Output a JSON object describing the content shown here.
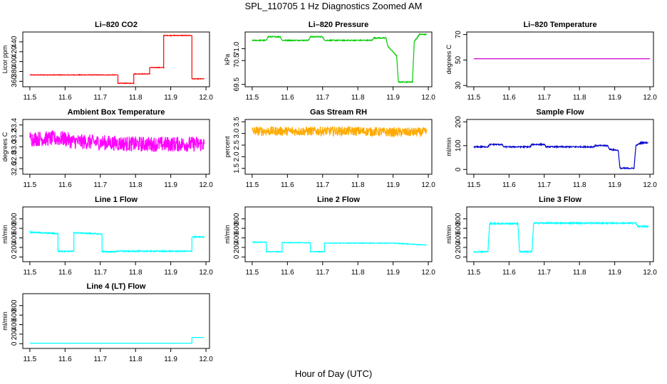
{
  "figure": {
    "title": "SPL_110705  1 Hz Diagnostics Zoomed AM",
    "xlabel": "Hour of Day (UTC)"
  },
  "chart_data": [
    {
      "type": "line",
      "title": "Li–820 CO2",
      "ylabel": "Licor ppm",
      "color": "#ff0000",
      "xlim": [
        11.48,
        12.01
      ],
      "xticks": [
        11.5,
        11.6,
        11.7,
        11.8,
        11.9,
        12.0
      ],
      "xtick_labels": [
        "11.5",
        "11.6",
        "11.7",
        "11.8",
        "11.9",
        "12.0"
      ],
      "ylim": [
        349,
        460
      ],
      "yticks": [
        360,
        380,
        400,
        420,
        440
      ],
      "ytick_labels": [
        "360",
        "380",
        "400",
        "420",
        "440"
      ],
      "noise": 0.6,
      "x": [
        11.5,
        11.75,
        11.75,
        11.795,
        11.795,
        11.84,
        11.84,
        11.88,
        11.88,
        11.96,
        11.96,
        11.995
      ],
      "y": [
        373,
        373,
        356,
        356,
        375,
        375,
        388,
        388,
        453,
        453,
        365,
        365
      ]
    },
    {
      "type": "line",
      "title": "Li–820 Pressure",
      "ylabel": "kPa",
      "color": "#00cc00",
      "xlim": [
        11.48,
        12.01
      ],
      "xticks": [
        11.5,
        11.6,
        11.7,
        11.8,
        11.9,
        12.0
      ],
      "xtick_labels": [
        "11.5",
        "11.6",
        "11.7",
        "11.8",
        "11.9",
        "12.0"
      ],
      "ylim": [
        69.4,
        71.7
      ],
      "yticks": [
        69.5,
        70.5,
        71.0
      ],
      "ytick_labels": [
        "69.5",
        "70.5",
        "71.0"
      ],
      "noise": 0.02,
      "x": [
        11.5,
        11.54,
        11.545,
        11.58,
        11.585,
        11.66,
        11.665,
        11.7,
        11.705,
        11.84,
        11.845,
        11.88,
        11.885,
        11.91,
        11.915,
        11.955,
        11.96,
        11.975,
        11.995
      ],
      "y": [
        71.35,
        71.35,
        71.5,
        71.5,
        71.35,
        71.35,
        71.5,
        71.5,
        71.35,
        71.35,
        71.45,
        71.45,
        71.1,
        70.7,
        69.6,
        69.6,
        71.3,
        71.6,
        71.6
      ]
    },
    {
      "type": "line",
      "title": "Li–820 Temperature",
      "ylabel": "degrees C",
      "color": "#cc00cc",
      "xlim": [
        11.48,
        12.01
      ],
      "xticks": [
        11.5,
        11.6,
        11.7,
        11.8,
        11.9,
        12.0
      ],
      "xtick_labels": [
        "11.5",
        "11.6",
        "11.7",
        "11.8",
        "11.9",
        "12.0"
      ],
      "ylim": [
        29,
        72
      ],
      "yticks": [
        30,
        50,
        70
      ],
      "ytick_labels": [
        "30",
        "50",
        "70"
      ],
      "noise": 0,
      "x": [
        11.5,
        12.0
      ],
      "y": [
        51,
        51
      ]
    },
    {
      "type": "line",
      "title": "Ambient Box Temperature",
      "ylabel": "degrees C",
      "color": "#ff00ff",
      "xlim": [
        11.48,
        12.01
      ],
      "xticks": [
        11.5,
        11.6,
        11.7,
        11.8,
        11.9,
        12.0
      ],
      "xtick_labels": [
        "11.5",
        "11.6",
        "11.7",
        "11.8",
        "11.9",
        "12.0"
      ],
      "ylim": [
        32.5,
        33.5
      ],
      "yticks": [
        32.6,
        32.8,
        33.0,
        33.2,
        33.4
      ],
      "ytick_labels": [
        "32.6",
        "32.8",
        "33.0",
        "33.2",
        "33.4"
      ],
      "noise": 0.14,
      "x": [
        11.5,
        11.6,
        11.62,
        11.7,
        11.8,
        11.9,
        11.995
      ],
      "y": [
        33.15,
        33.15,
        33.1,
        33.08,
        33.05,
        33.05,
        33.05
      ]
    },
    {
      "type": "line",
      "title": "Gas Stream RH",
      "ylabel": "percent",
      "color": "#ffaa00",
      "xlim": [
        11.48,
        12.01
      ],
      "xticks": [
        11.5,
        11.6,
        11.7,
        11.8,
        11.9,
        12.0
      ],
      "xtick_labels": [
        "11.5",
        "11.6",
        "11.7",
        "11.8",
        "11.9",
        "12.0"
      ],
      "ylim": [
        1.25,
        3.6
      ],
      "yticks": [
        1.5,
        2.0,
        2.5,
        3.0,
        3.5
      ],
      "ytick_labels": [
        "1.5",
        "2.0",
        "2.5",
        "3.0",
        "3.5"
      ],
      "noise": 0.2,
      "x": [
        11.5,
        11.7,
        11.8,
        11.9,
        11.995
      ],
      "y": [
        3.1,
        3.1,
        3.1,
        3.05,
        3.05
      ]
    },
    {
      "type": "line",
      "title": "Sample Flow",
      "ylabel": "ml/min",
      "color": "#0000cc",
      "xlim": [
        11.48,
        12.01
      ],
      "xticks": [
        11.5,
        11.6,
        11.7,
        11.8,
        11.9,
        12.0
      ],
      "xtick_labels": [
        "11.5",
        "11.6",
        "11.7",
        "11.8",
        "11.9",
        "12.0"
      ],
      "ylim": [
        -20,
        210
      ],
      "yticks": [
        0,
        100,
        200
      ],
      "ytick_labels": [
        "0",
        "100",
        "200"
      ],
      "noise": 2.5,
      "x": [
        11.5,
        11.54,
        11.545,
        11.58,
        11.585,
        11.66,
        11.665,
        11.7,
        11.705,
        11.84,
        11.845,
        11.88,
        11.885,
        11.91,
        11.915,
        11.955,
        11.96,
        11.975,
        11.995
      ],
      "y": [
        95,
        95,
        105,
        105,
        95,
        95,
        105,
        105,
        95,
        95,
        100,
        100,
        85,
        80,
        5,
        5,
        100,
        112,
        112
      ]
    },
    {
      "type": "line",
      "title": "Line 1 Flow",
      "ylabel": "ml/min",
      "color": "#00ffff",
      "xlim": [
        11.48,
        12.01
      ],
      "xticks": [
        11.5,
        11.6,
        11.7,
        11.8,
        11.9,
        12.0
      ],
      "xtick_labels": [
        "11.5",
        "11.6",
        "11.7",
        "11.8",
        "11.9",
        "12.0"
      ],
      "ylim": [
        -100,
        1050
      ],
      "yticks": [
        0,
        200,
        400,
        600,
        800
      ],
      "ytick_labels": [
        "0",
        "200",
        "400",
        "600",
        "800"
      ],
      "noise": 12,
      "x": [
        11.5,
        11.58,
        11.58,
        11.625,
        11.625,
        11.705,
        11.705,
        11.745,
        11.745,
        11.96,
        11.96,
        11.995
      ],
      "y": [
        520,
        490,
        120,
        120,
        510,
        480,
        110,
        110,
        120,
        120,
        420,
        420
      ]
    },
    {
      "type": "line",
      "title": "Line 2 Flow",
      "ylabel": "ml/min",
      "color": "#00ffff",
      "xlim": [
        11.48,
        12.01
      ],
      "xticks": [
        11.5,
        11.6,
        11.7,
        11.8,
        11.9,
        12.0
      ],
      "xtick_labels": [
        "11.5",
        "11.6",
        "11.7",
        "11.8",
        "11.9",
        "12.0"
      ],
      "ylim": [
        -100,
        1050
      ],
      "yticks": [
        0,
        200,
        400,
        600,
        800
      ],
      "ytick_labels": [
        "0",
        "200",
        "400",
        "600",
        "800"
      ],
      "noise": 7,
      "x": [
        11.5,
        11.54,
        11.54,
        11.585,
        11.585,
        11.665,
        11.665,
        11.705,
        11.705,
        11.9,
        11.995
      ],
      "y": [
        310,
        310,
        110,
        110,
        300,
        300,
        110,
        110,
        290,
        290,
        250
      ]
    },
    {
      "type": "line",
      "title": "Line 3 Flow",
      "ylabel": "ml/min",
      "color": "#00ffff",
      "xlim": [
        11.48,
        12.01
      ],
      "xticks": [
        11.5,
        11.6,
        11.7,
        11.8,
        11.9,
        12.0
      ],
      "xtick_labels": [
        "11.5",
        "11.6",
        "11.7",
        "11.8",
        "11.9",
        "12.0"
      ],
      "ylim": [
        -100,
        1050
      ],
      "yticks": [
        0,
        200,
        400,
        600,
        800
      ],
      "ytick_labels": [
        "0",
        "200",
        "400",
        "600",
        "800"
      ],
      "noise": 14,
      "x": [
        11.5,
        11.54,
        11.545,
        11.625,
        11.63,
        11.665,
        11.67,
        11.96,
        11.965,
        11.995
      ],
      "y": [
        110,
        110,
        700,
        700,
        110,
        110,
        710,
        710,
        640,
        640
      ]
    },
    {
      "type": "line",
      "title": "Line 4 (LT) Flow",
      "ylabel": "ml/min",
      "color": "#00ffff",
      "xlim": [
        11.48,
        12.01
      ],
      "xticks": [
        11.5,
        11.6,
        11.7,
        11.8,
        11.9,
        12.0
      ],
      "xtick_labels": [
        "11.5",
        "11.6",
        "11.7",
        "11.8",
        "11.9",
        "12.0"
      ],
      "ylim": [
        -100,
        1050
      ],
      "yticks": [
        0,
        200,
        400,
        600,
        800
      ],
      "ytick_labels": [
        "0",
        "200",
        "400",
        "600",
        "800"
      ],
      "noise": 0,
      "x": [
        11.5,
        11.96,
        11.96,
        11.995
      ],
      "y": [
        10,
        10,
        130,
        130
      ]
    }
  ]
}
